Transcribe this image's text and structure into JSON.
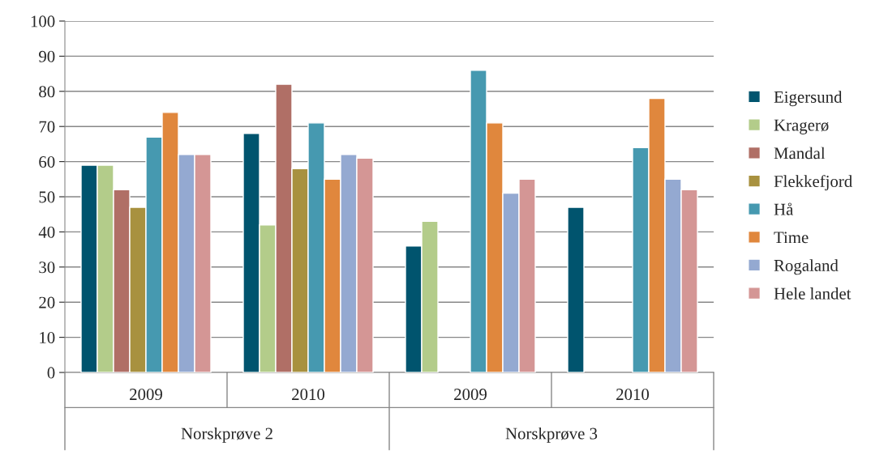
{
  "chart_data": {
    "type": "bar",
    "categories": [
      "2009",
      "2010",
      "2009",
      "2010"
    ],
    "series": [
      {
        "name": "Eigersund",
        "color": "#00546e",
        "values": [
          59,
          68,
          36,
          47
        ]
      },
      {
        "name": "Kragerø",
        "color": "#b3cc8a",
        "values": [
          59,
          42,
          43,
          null
        ]
      },
      {
        "name": "Mandal",
        "color": "#b06f66",
        "values": [
          52,
          82,
          null,
          null
        ]
      },
      {
        "name": "Flekkefjord",
        "color": "#a8913f",
        "values": [
          47,
          58,
          null,
          null
        ]
      },
      {
        "name": "Hå",
        "color": "#4699b0",
        "values": [
          67,
          71,
          86,
          64
        ]
      },
      {
        "name": "Time",
        "color": "#e0873d",
        "values": [
          74,
          55,
          71,
          78
        ]
      },
      {
        "name": "Rogaland",
        "color": "#94a9d1",
        "values": [
          62,
          62,
          51,
          55
        ]
      },
      {
        "name": "Hele landet",
        "color": "#d49695",
        "values": [
          62,
          61,
          55,
          52
        ]
      }
    ],
    "annotations": [
      "Norskprøve 2",
      "Norskprøve 3"
    ],
    "ylim": [
      0,
      100
    ],
    "yticks": [
      0,
      10,
      20,
      30,
      40,
      50,
      60,
      70,
      80,
      90,
      100
    ],
    "grid": "y",
    "legend": "right"
  }
}
